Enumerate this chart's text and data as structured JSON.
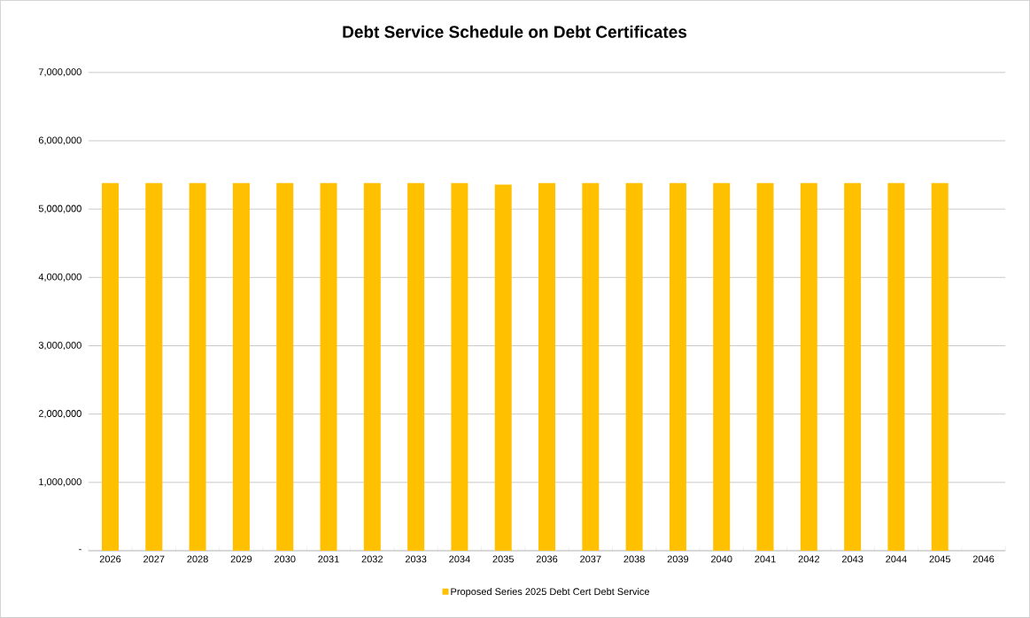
{
  "chart_data": {
    "type": "bar",
    "title": "Debt Service Schedule on Debt Certificates",
    "categories": [
      "2026",
      "2027",
      "2028",
      "2029",
      "2030",
      "2031",
      "2032",
      "2033",
      "2034",
      "2035",
      "2036",
      "2037",
      "2038",
      "2039",
      "2040",
      "2041",
      "2042",
      "2043",
      "2044",
      "2045",
      "2046"
    ],
    "series": [
      {
        "name": "Proposed Series 2025  Debt Cert Debt Service",
        "color": "#ffc000",
        "values": [
          5380000,
          5380000,
          5380000,
          5380000,
          5380000,
          5380000,
          5380000,
          5380000,
          5380000,
          5360000,
          5380000,
          5380000,
          5380000,
          5380000,
          5380000,
          5380000,
          5380000,
          5380000,
          5380000,
          5380000,
          null
        ]
      }
    ],
    "ylim": [
      0,
      7000000
    ],
    "yticks": [
      {
        "value": 0,
        "label": "-"
      },
      {
        "value": 1000000,
        "label": "1,000,000"
      },
      {
        "value": 2000000,
        "label": "2,000,000"
      },
      {
        "value": 3000000,
        "label": "3,000,000"
      },
      {
        "value": 4000000,
        "label": "4,000,000"
      },
      {
        "value": 5000000,
        "label": "5,000,000"
      },
      {
        "value": 6000000,
        "label": "6,000,000"
      },
      {
        "value": 7000000,
        "label": "7,000,000"
      }
    ],
    "grid": "y",
    "legend": "bottom"
  }
}
